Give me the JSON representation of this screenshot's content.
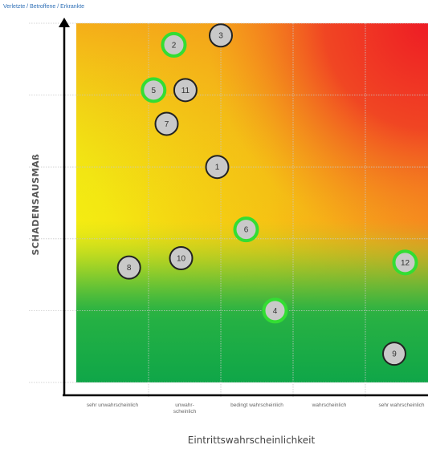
{
  "chart_data": {
    "type": "scatter",
    "top_caption": "Verletzte / Betroffene / Erkrankte",
    "ylabel": "SCHADENSAUSMAß",
    "xlabel": "Eintrittswahrscheinlichkeit",
    "categories": [
      {
        "lines": [
          "sehr unwahrscheinlich"
        ]
      },
      {
        "lines": [
          "unwahr-",
          "scheinlich"
        ]
      },
      {
        "lines": [
          "bedingt wahrscheinlich"
        ]
      },
      {
        "lines": [
          "wahrscheinlich"
        ]
      },
      {
        "lines": [
          "sehr wahrscheinlich"
        ]
      }
    ],
    "xlim": [
      0,
      5
    ],
    "ylim": [
      0,
      5
    ],
    "grid": true,
    "background": "green-to-red risk gradient (low probability/low impact green, high probability/high impact red)",
    "colors": {
      "green": "#1fae45",
      "yellow": "#f4ec12",
      "orange": "#f59a16",
      "red": "#ee1c25",
      "highlight_ring": "#33dd33",
      "marker_fill": "#c9c9c9"
    },
    "points": [
      {
        "label": "1",
        "x": 1.95,
        "y": 3.0,
        "highlighted": false
      },
      {
        "label": "2",
        "x": 1.35,
        "y": 4.7,
        "highlighted": true
      },
      {
        "label": "3",
        "x": 2.0,
        "y": 4.83,
        "highlighted": false
      },
      {
        "label": "4",
        "x": 2.75,
        "y": 1.0,
        "highlighted": true
      },
      {
        "label": "5",
        "x": 1.07,
        "y": 4.07,
        "highlighted": true
      },
      {
        "label": "6",
        "x": 2.35,
        "y": 2.13,
        "highlighted": true
      },
      {
        "label": "7",
        "x": 1.25,
        "y": 3.6,
        "highlighted": false
      },
      {
        "label": "8",
        "x": 0.73,
        "y": 1.6,
        "highlighted": false
      },
      {
        "label": "9",
        "x": 4.4,
        "y": 0.4,
        "highlighted": false
      },
      {
        "label": "10",
        "x": 1.45,
        "y": 1.73,
        "highlighted": false
      },
      {
        "label": "11",
        "x": 1.51,
        "y": 4.07,
        "highlighted": false
      },
      {
        "label": "12",
        "x": 4.55,
        "y": 1.67,
        "highlighted": true
      }
    ]
  }
}
